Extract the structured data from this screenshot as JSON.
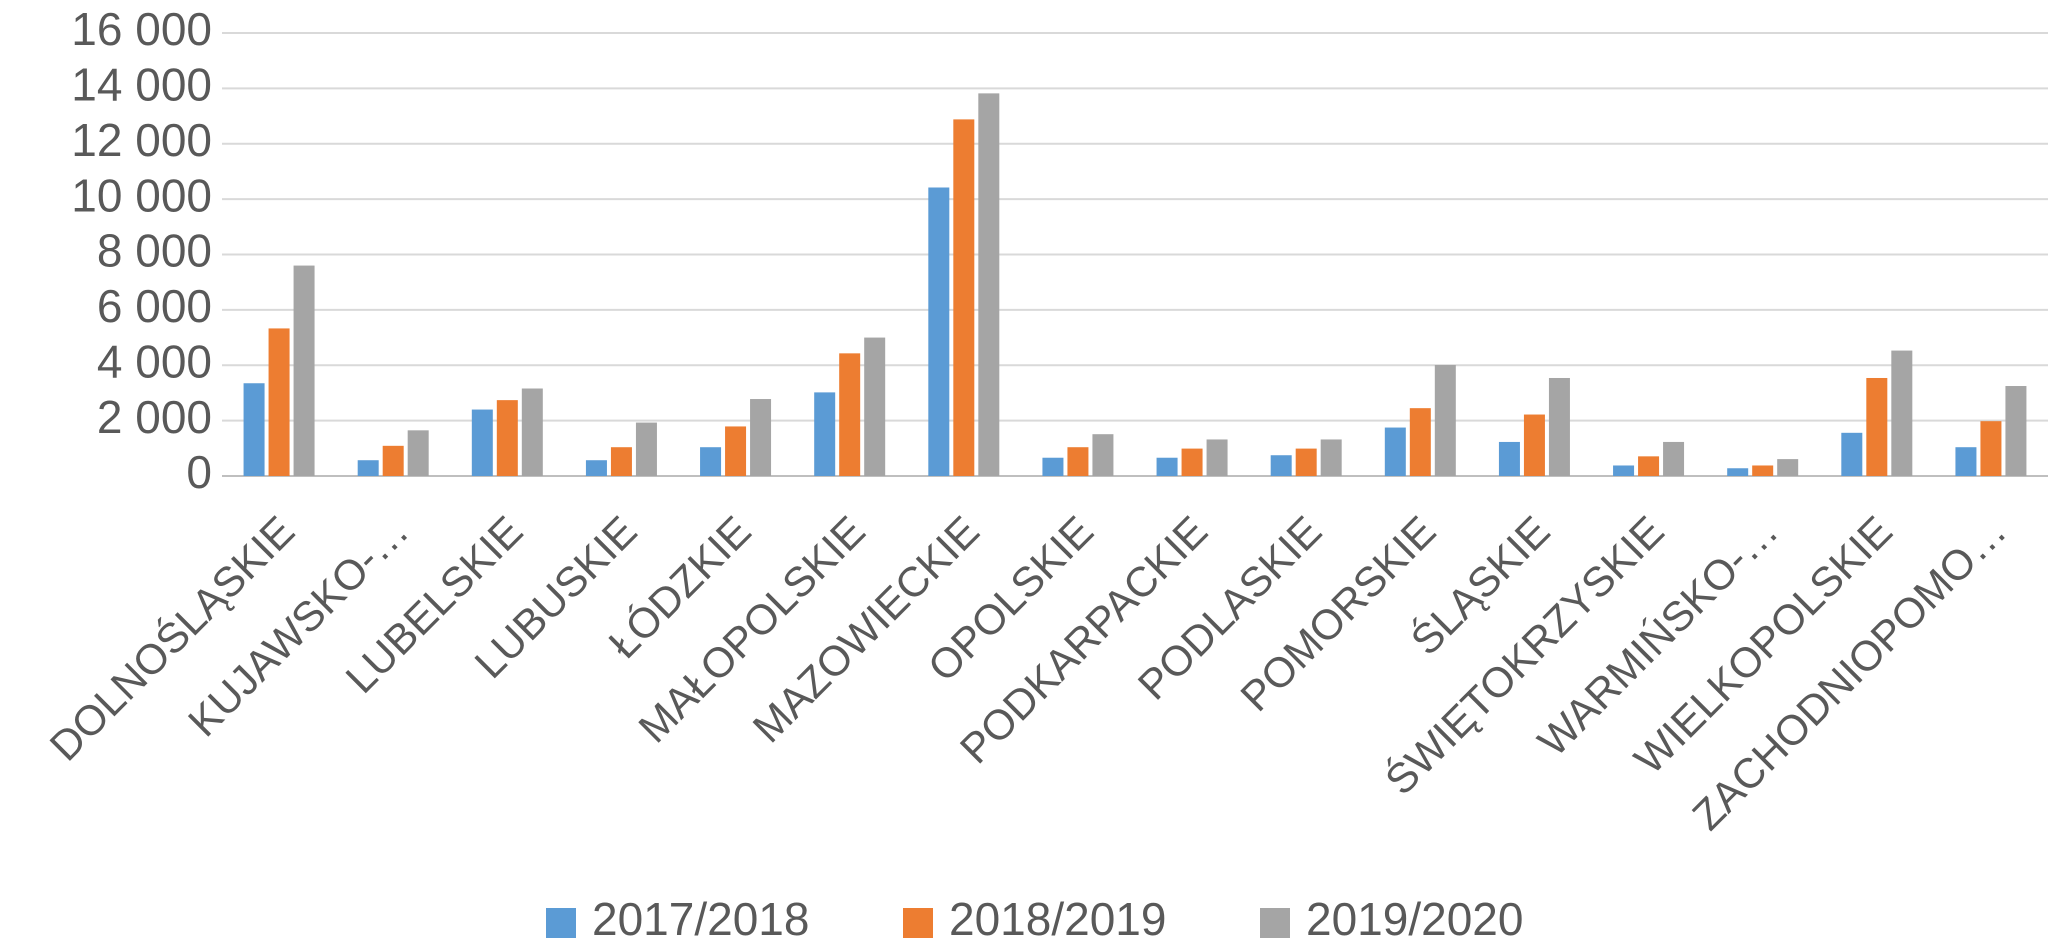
{
  "chart_data": {
    "type": "bar",
    "categories": [
      "DOLNOŚLĄSKIE",
      "KUJAWSKO-…",
      "LUBELSKIE",
      "LUBUSKIE",
      "ŁÓDZKIE",
      "MAŁOPOLSKIE",
      "MAZOWIECKIE",
      "OPOLSKIE",
      "PODKARPACKIE",
      "PODLASKIE",
      "POMORSKIE",
      "ŚLĄSKIE",
      "ŚWIĘTOKRZYSKIE",
      "WARMIŃSKO-…",
      "WIELKOPOLSKIE",
      "ZACHODNIOPOMO…"
    ],
    "series": [
      {
        "name": "2017/2018",
        "color": "#5b9bd5",
        "values": [
          3350,
          570,
          2400,
          570,
          1040,
          3020,
          10420,
          660,
          660,
          750,
          1750,
          1230,
          380,
          280,
          1560,
          1040
        ]
      },
      {
        "name": "2018/2019",
        "color": "#ed7d31",
        "values": [
          5330,
          1090,
          2740,
          1040,
          1790,
          4430,
          12880,
          1040,
          990,
          990,
          2450,
          2220,
          710,
          380,
          3540,
          1980
        ]
      },
      {
        "name": "2019/2020",
        "color": "#a5a5a5",
        "values": [
          7600,
          1650,
          3160,
          1930,
          2780,
          5000,
          13820,
          1510,
          1320,
          1320,
          4010,
          3540,
          1230,
          610,
          4530,
          3250
        ]
      }
    ],
    "ylim": [
      0,
      16000
    ],
    "yticks": [
      0,
      {
        "value": 2000,
        "label": "2 000"
      },
      {
        "value": 4000,
        "label": "4 000"
      },
      {
        "value": 6000,
        "label": "6 000"
      },
      {
        "value": 8000,
        "label": "8 000"
      },
      {
        "value": 10000,
        "label": "10 000"
      },
      {
        "value": 12000,
        "label": "12 000"
      },
      {
        "value": 14000,
        "label": "14 000"
      },
      {
        "value": 16000,
        "label": "16 000"
      }
    ],
    "grid": true,
    "legend": "bottom"
  }
}
